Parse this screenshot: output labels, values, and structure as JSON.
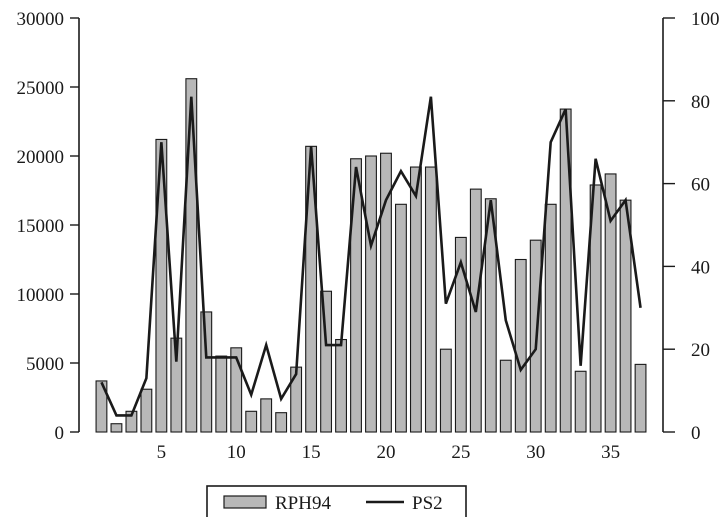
{
  "chart_data": {
    "type": "bar",
    "title": "",
    "xlabel": "",
    "ylabel": "",
    "y2label": "",
    "x": [
      1,
      2,
      3,
      4,
      5,
      6,
      7,
      8,
      9,
      10,
      11,
      12,
      13,
      14,
      15,
      16,
      17,
      18,
      19,
      20,
      21,
      22,
      23,
      24,
      25,
      26,
      27,
      28,
      29,
      30,
      31,
      32,
      33,
      34,
      35,
      36,
      37
    ],
    "xticks": [
      5,
      10,
      15,
      20,
      25,
      30,
      35
    ],
    "xlim": [
      -0.5,
      38.5
    ],
    "ylim": [
      0,
      30000
    ],
    "yticks": [
      0,
      5000,
      10000,
      15000,
      20000,
      25000,
      30000
    ],
    "y2lim": [
      0,
      100
    ],
    "y2ticks": [
      0,
      20,
      40,
      60,
      80,
      100
    ],
    "grid": false,
    "legend_position": "bottom-center",
    "series": [
      {
        "name": "RPH94",
        "kind": "bar",
        "axis": "left",
        "color": "#b8b8b8",
        "values": [
          3700,
          600,
          1500,
          3100,
          21200,
          6800,
          25600,
          8700,
          5500,
          6100,
          1500,
          2400,
          1400,
          4700,
          20700,
          10200,
          6700,
          19800,
          20000,
          20200,
          16500,
          19200,
          19200,
          6000,
          14100,
          17600,
          16900,
          5200,
          12500,
          13900,
          16500,
          23400,
          4400,
          17900,
          18700,
          16800,
          4900
        ]
      },
      {
        "name": "PS2",
        "kind": "line",
        "axis": "right",
        "color": "#1a1a1a",
        "values": [
          12,
          4,
          4,
          13,
          70,
          17,
          81,
          18,
          18,
          18,
          9,
          21,
          8,
          14,
          69,
          21,
          21,
          64,
          45,
          56,
          63,
          57,
          81,
          31,
          41,
          29,
          56,
          27,
          15,
          20,
          70,
          78,
          16,
          66,
          51,
          56,
          30
        ]
      }
    ]
  }
}
